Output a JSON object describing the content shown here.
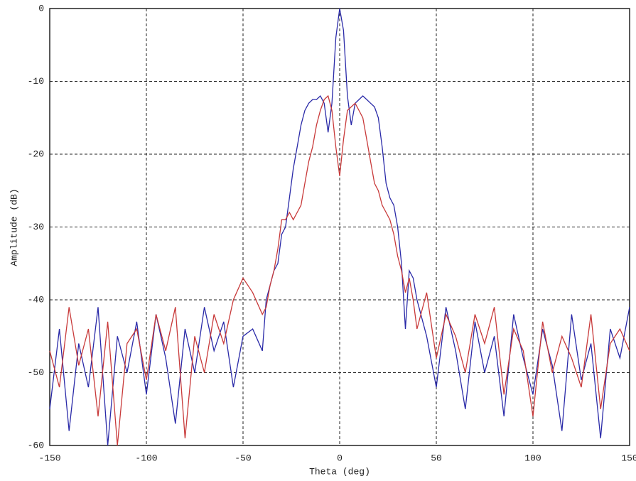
{
  "chart_data": {
    "type": "line",
    "xlabel": "Theta (deg)",
    "ylabel": "Amplitude (dB)",
    "x": [
      -150,
      -145,
      -140,
      -135,
      -130,
      -125,
      -120,
      -115,
      -110,
      -105,
      -100,
      -95,
      -90,
      -85,
      -80,
      -75,
      -70,
      -65,
      -60,
      -55,
      -50,
      -45,
      -40,
      -38,
      -36,
      -34,
      -32,
      -30,
      -28,
      -26,
      -24,
      -22,
      -20,
      -18,
      -16,
      -14,
      -12,
      -10,
      -8,
      -6,
      -4,
      -2,
      0,
      2,
      4,
      6,
      8,
      10,
      12,
      14,
      16,
      18,
      20,
      22,
      24,
      26,
      28,
      30,
      32,
      34,
      36,
      38,
      40,
      45,
      50,
      55,
      60,
      65,
      70,
      75,
      80,
      85,
      90,
      95,
      100,
      105,
      110,
      115,
      120,
      125,
      130,
      135,
      140,
      145,
      150
    ],
    "series": [
      {
        "color": "#2a2aa8",
        "values": [
          -55,
          -44,
          -58,
          -46,
          -52,
          -41,
          -60,
          -45,
          -50,
          -43,
          -53,
          -42,
          -48,
          -57,
          -44,
          -50,
          -41,
          -47,
          -43,
          -52,
          -45,
          -44,
          -47,
          -40,
          -38,
          -36,
          -35,
          -31,
          -30,
          -26,
          -22,
          -19,
          -16,
          -14,
          -13,
          -12.5,
          -12.5,
          -12,
          -13,
          -17,
          -13,
          -4,
          0,
          -3,
          -12,
          -16,
          -13,
          -12.5,
          -12,
          -12.5,
          -13,
          -13.5,
          -15,
          -19,
          -24,
          -26,
          -27,
          -30,
          -35,
          -44,
          -36,
          -37,
          -40,
          -45,
          -52,
          -41,
          -47,
          -55,
          -43,
          -50,
          -45,
          -56,
          -42,
          -48,
          -53,
          -44,
          -49,
          -58,
          -42,
          -51,
          -46,
          -59,
          -44,
          -48,
          -41
        ]
      },
      {
        "color": "#c83a3a",
        "values": [
          -47,
          -52,
          -41,
          -49,
          -44,
          -56,
          -43,
          -60,
          -46,
          -44,
          -51,
          -42,
          -47,
          -41,
          -59,
          -45,
          -50,
          -42,
          -46,
          -40,
          -37,
          -39,
          -42,
          -41,
          -38,
          -36,
          -33,
          -29,
          -29,
          -28,
          -29,
          -28,
          -27,
          -24,
          -21,
          -19,
          -16,
          -14,
          -12.5,
          -12,
          -14,
          -19,
          -23,
          -18,
          -14,
          -13.5,
          -13,
          -14,
          -15,
          -18,
          -21,
          -24,
          -25,
          -27,
          -28,
          -29,
          -31,
          -34,
          -36,
          -39,
          -37,
          -40,
          -44,
          -39,
          -48,
          -42,
          -45,
          -50,
          -42,
          -46,
          -41,
          -53,
          -44,
          -47,
          -56,
          -43,
          -50,
          -45,
          -48,
          -52,
          -42,
          -55,
          -46,
          -44,
          -47
        ]
      }
    ],
    "xlim": [
      -150,
      150
    ],
    "ylim": [
      -60,
      0
    ],
    "xticks": [
      -150,
      -100,
      -50,
      0,
      50,
      100,
      150
    ],
    "yticks": [
      0,
      -10,
      -20,
      -30,
      -40,
      -50,
      -60
    ],
    "grid": true
  }
}
